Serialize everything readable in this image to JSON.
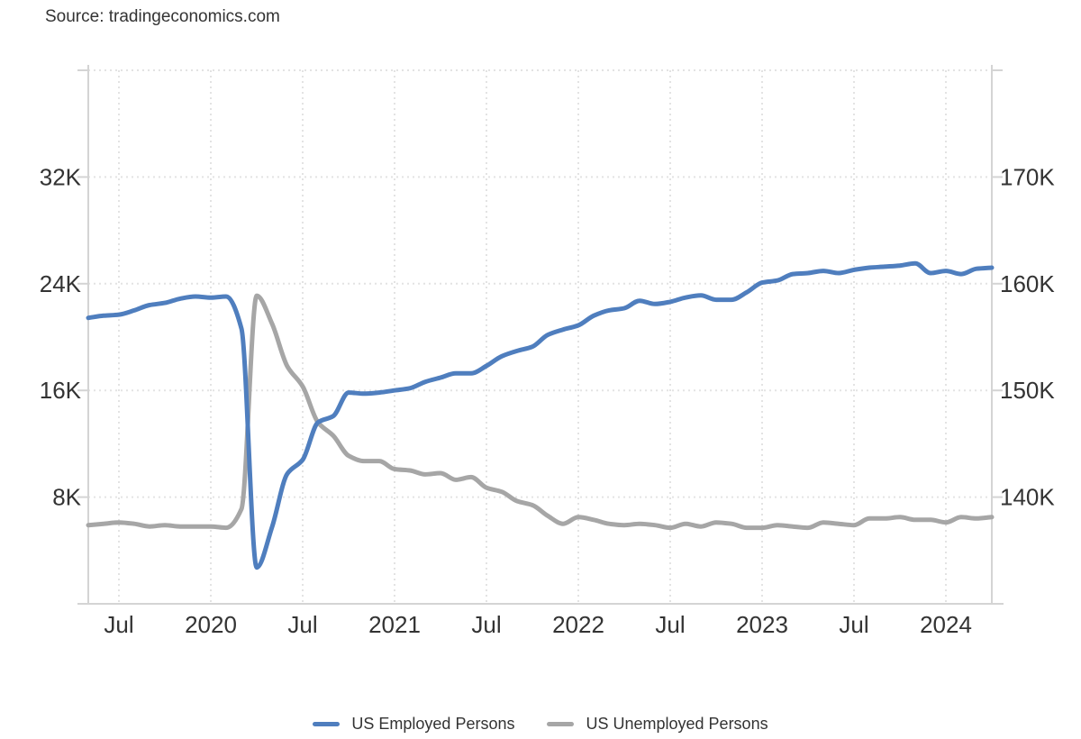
{
  "page": {
    "source_label": "Source: tradingeconomics.com"
  },
  "colors": {
    "employed_line": "#4f7ebe",
    "unemployed_line": "#a6a6a6",
    "grid_dotted": "#e3e3e3",
    "axis_border": "#d4d4d4",
    "label_text": "#333333"
  },
  "chart_data": {
    "type": "line",
    "title": "",
    "x_start_month": "2019-05",
    "x_end_month": "2024-04",
    "x_interval": "monthly",
    "grid": "dotted",
    "legend_position": "bottom",
    "x_ticks": [
      {
        "month_index": 2,
        "label": "Jul"
      },
      {
        "month_index": 8,
        "label": "2020"
      },
      {
        "month_index": 14,
        "label": "Jul"
      },
      {
        "month_index": 20,
        "label": "2021"
      },
      {
        "month_index": 26,
        "label": "Jul"
      },
      {
        "month_index": 32,
        "label": "2022"
      },
      {
        "month_index": 38,
        "label": "Jul"
      },
      {
        "month_index": 44,
        "label": "2023"
      },
      {
        "month_index": 50,
        "label": "Jul"
      },
      {
        "month_index": 56,
        "label": "2024"
      }
    ],
    "left_axis": {
      "series": "US Unemployed Persons",
      "range": [
        0,
        40
      ],
      "unit": "K (thousand persons, in thousands)",
      "ticks": [
        {
          "value": 8,
          "label": "8K"
        },
        {
          "value": 16,
          "label": "16K"
        },
        {
          "value": 24,
          "label": "24K"
        },
        {
          "value": 32,
          "label": "32K"
        }
      ]
    },
    "right_axis": {
      "series": "US Employed Persons",
      "range": [
        130,
        180
      ],
      "unit": "K (thousand persons, in thousands)",
      "ticks": [
        {
          "value": 140,
          "label": "140K"
        },
        {
          "value": 150,
          "label": "150K"
        },
        {
          "value": 160,
          "label": "160K"
        },
        {
          "value": 170,
          "label": "170K"
        }
      ]
    },
    "series": [
      {
        "name": "US Employed Persons",
        "axis": "right",
        "color": "#4f7ebe",
        "values": [
          156.8,
          157.0,
          157.1,
          157.5,
          158.0,
          158.2,
          158.6,
          158.8,
          158.7,
          158.8,
          155.8,
          133.4,
          137.2,
          142.2,
          143.5,
          147.0,
          147.6,
          149.8,
          149.7,
          149.8,
          150.0,
          150.2,
          150.8,
          151.2,
          151.6,
          151.6,
          152.3,
          153.2,
          153.7,
          154.1,
          155.2,
          155.7,
          156.1,
          157.0,
          157.5,
          157.7,
          158.4,
          158.1,
          158.3,
          158.7,
          158.9,
          158.5,
          158.5,
          159.2,
          160.1,
          160.3,
          160.9,
          161.0,
          161.2,
          161.0,
          161.3,
          161.5,
          161.6,
          161.7,
          161.9,
          161.0,
          161.2,
          160.9,
          161.4,
          161.5
        ]
      },
      {
        "name": "US Unemployed Persons",
        "axis": "left",
        "color": "#a6a6a6",
        "values": [
          5.9,
          6.0,
          6.1,
          6.0,
          5.8,
          5.9,
          5.8,
          5.8,
          5.8,
          5.7,
          7.1,
          23.1,
          21.0,
          17.8,
          16.3,
          13.6,
          12.6,
          11.1,
          10.7,
          10.7,
          10.1,
          10.0,
          9.7,
          9.8,
          9.3,
          9.5,
          8.7,
          8.4,
          7.7,
          7.4,
          6.6,
          6.0,
          6.5,
          6.3,
          6.0,
          5.9,
          6.0,
          5.9,
          5.7,
          6.0,
          5.8,
          6.1,
          6.0,
          5.7,
          5.7,
          5.9,
          5.8,
          5.7,
          6.1,
          6.0,
          5.9,
          6.4,
          6.4,
          6.5,
          6.3,
          6.3,
          6.1,
          6.5,
          6.4,
          6.5
        ]
      }
    ]
  }
}
